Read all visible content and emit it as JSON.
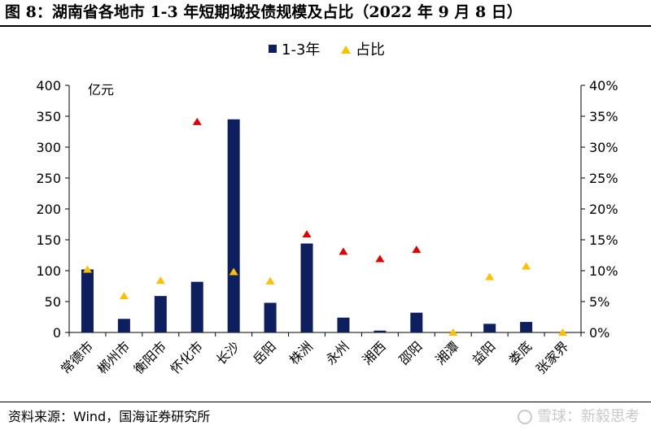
{
  "title": "图 8：湖南省各地市 1-3 年短期城投债规模及占比（2022 年 9 月 8 日）",
  "source": "资料来源：Wind，国海证券研究所",
  "watermark": "雪球：新毅思考",
  "colors": {
    "bar": "#0d1f5e",
    "marker_high": "#e00000",
    "marker_low": "#ffc000"
  },
  "chart_data": {
    "type": "bar",
    "categories": [
      "常德市",
      "郴州市",
      "衡阳市",
      "怀化市",
      "长沙",
      "岳阳",
      "株洲",
      "永州",
      "湘西",
      "邵阳",
      "湘潭",
      "益阳",
      "娄底",
      "张家界"
    ],
    "unit_label": "亿元",
    "series": [
      {
        "name": "1-3年",
        "type": "bar",
        "axis": "left",
        "values": [
          102,
          22,
          59,
          82,
          345,
          48,
          144,
          24,
          3,
          32,
          0,
          14,
          17,
          0
        ]
      },
      {
        "name": "占比",
        "type": "scatter",
        "axis": "right",
        "values": [
          10.2,
          5.9,
          8.4,
          34.1,
          9.8,
          8.3,
          15.9,
          13.1,
          11.9,
          13.4,
          0,
          9.0,
          10.7,
          0
        ]
      }
    ],
    "marker_red_categories": [
      "怀化市",
      "株洲",
      "永州",
      "湘西",
      "邵阳"
    ],
    "y_left": {
      "min": 0,
      "max": 400,
      "step": 50,
      "ticks": [
        "0",
        "50",
        "100",
        "150",
        "200",
        "250",
        "300",
        "350",
        "400"
      ]
    },
    "y_right": {
      "min": 0,
      "max": 40,
      "step": 5,
      "ticks": [
        "0%",
        "5%",
        "10%",
        "15%",
        "20%",
        "25%",
        "30%",
        "35%",
        "40%"
      ]
    },
    "legend_position": "top-center",
    "grid": false
  }
}
